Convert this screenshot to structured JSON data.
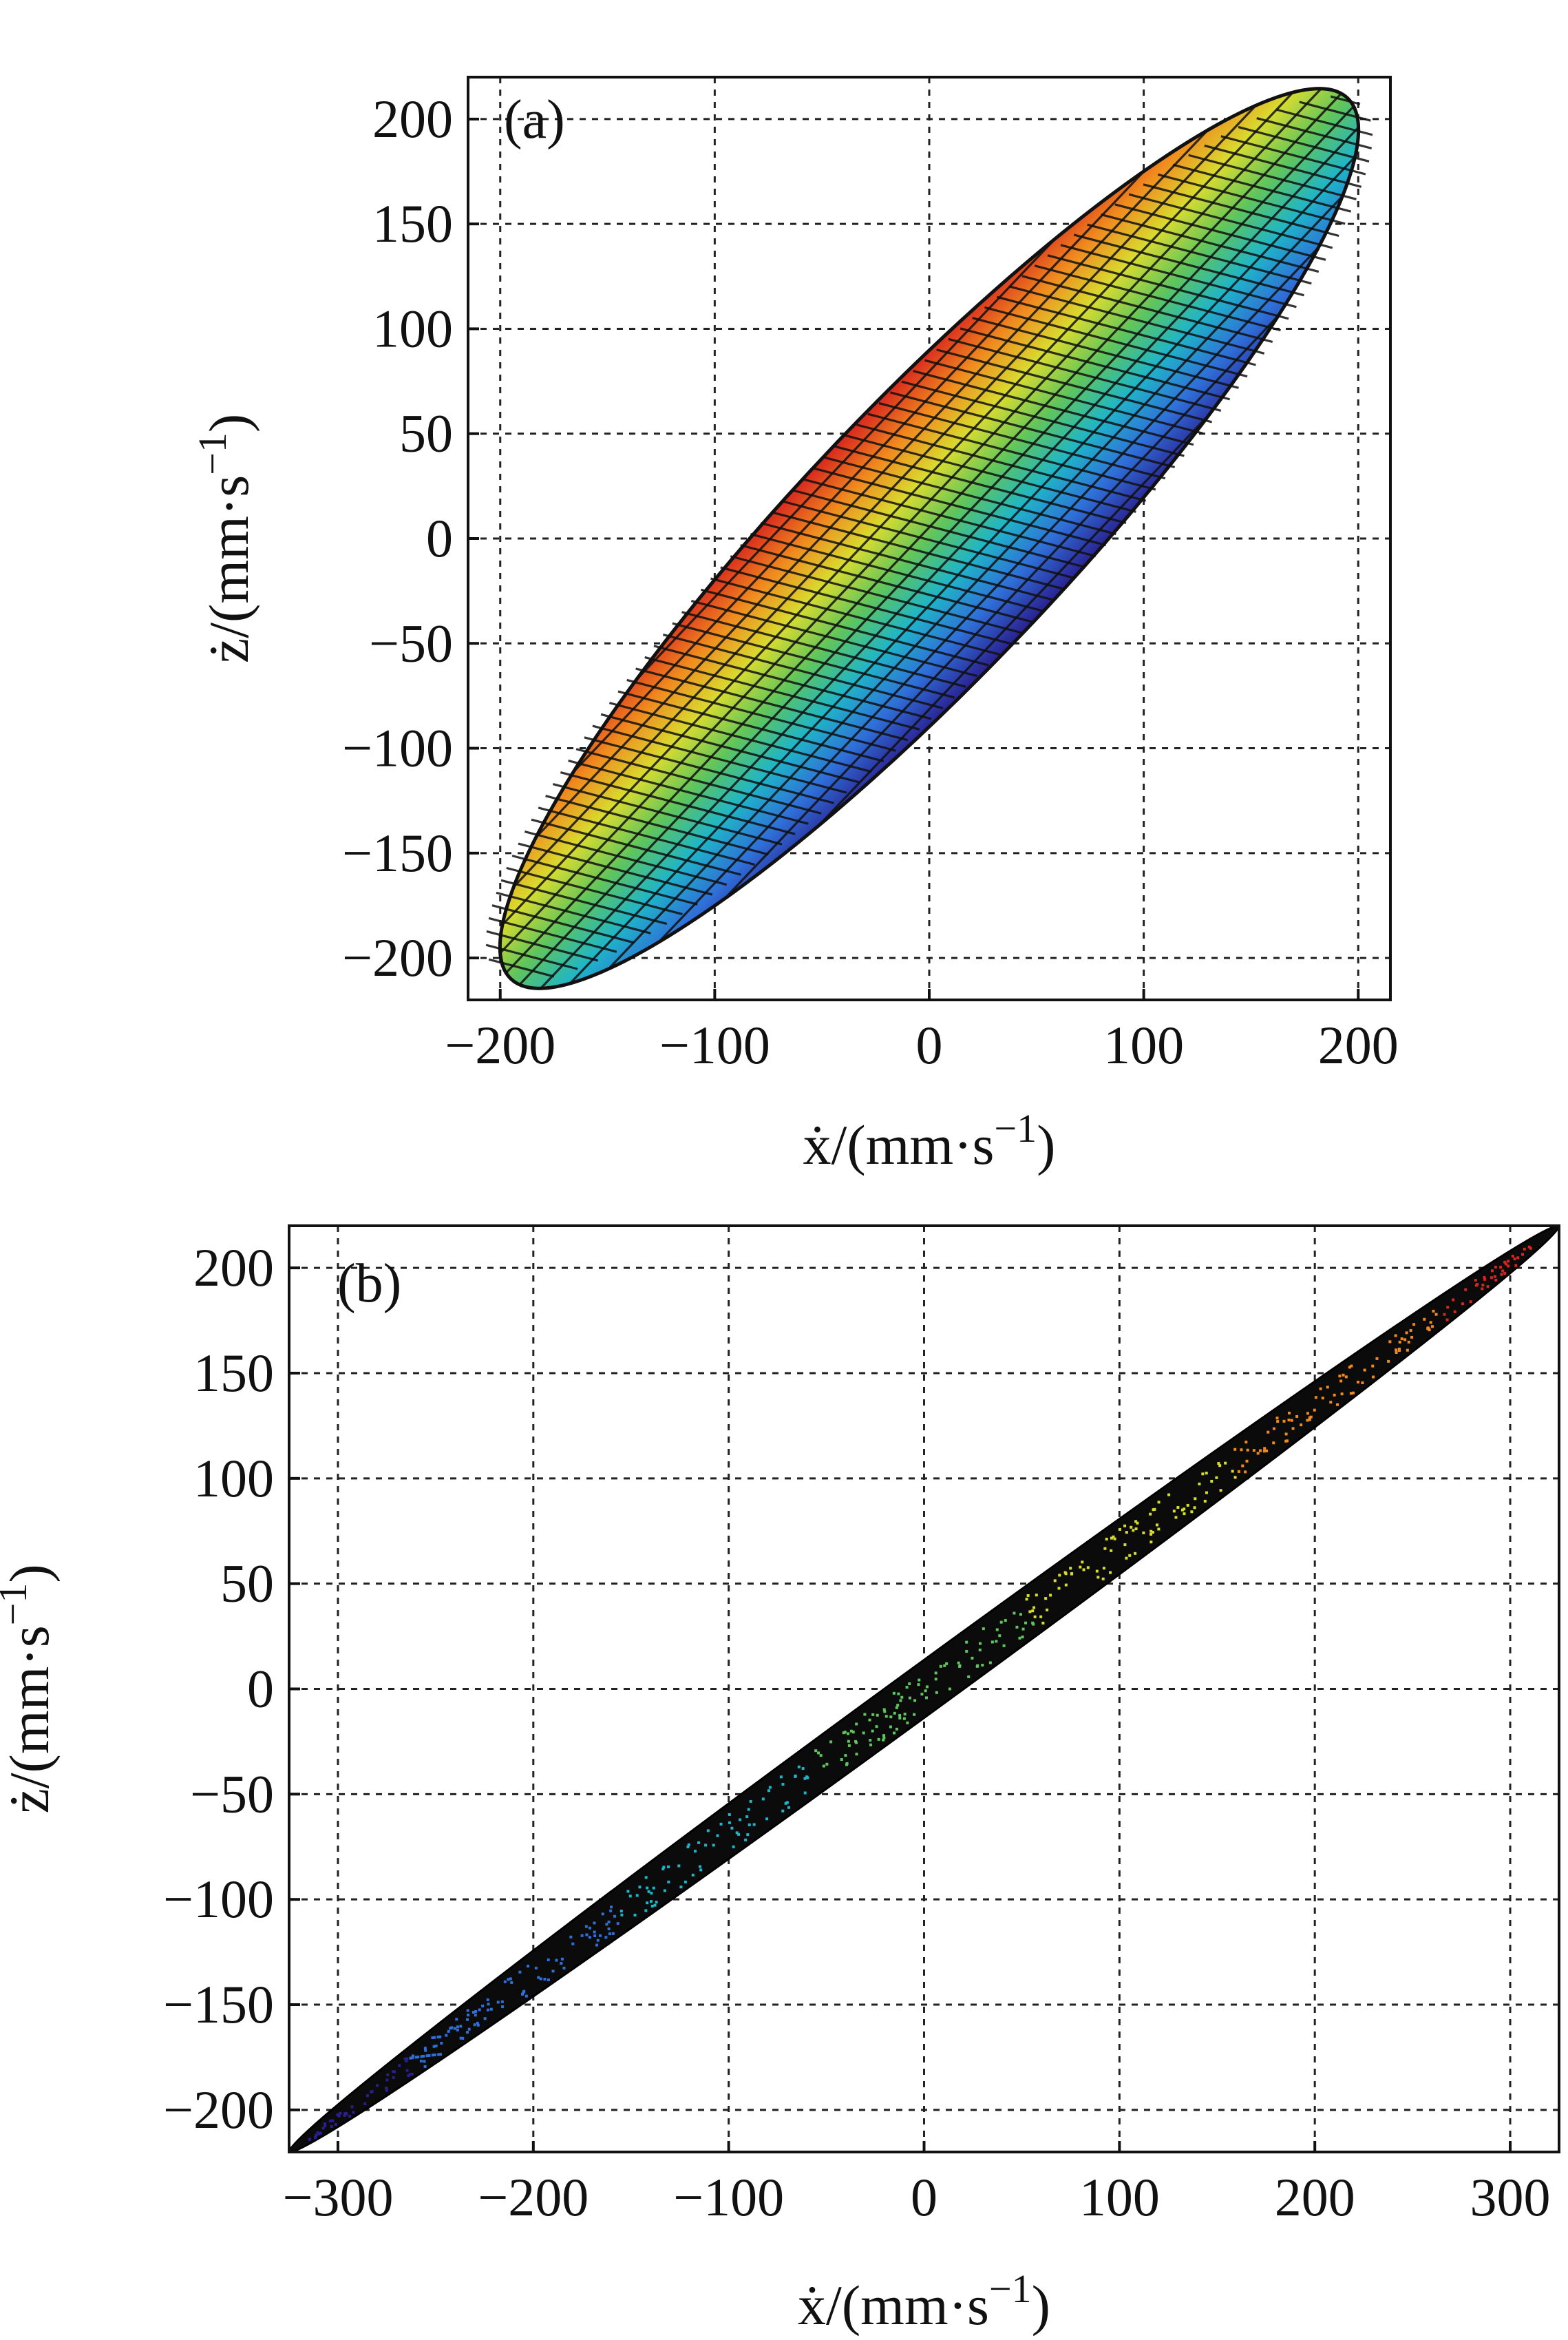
{
  "chart_data": [
    {
      "type": "scatter",
      "panel_label": "(a)",
      "xlabel": "ẋ/(mm·s−1)",
      "ylabel": "ż/(mm·s−1)",
      "xlim": [
        -215,
        215
      ],
      "ylim": [
        -220,
        220
      ],
      "x_ticks": [
        -200,
        -100,
        0,
        100,
        200
      ],
      "y_ticks": [
        -200,
        -150,
        -100,
        -50,
        0,
        50,
        100,
        150,
        200
      ],
      "grid": true,
      "legend": "none",
      "colormap": "jet",
      "colormap_stops": [
        "#2a1f8f",
        "#2f6fd8",
        "#1fb5c8",
        "#5fc55c",
        "#d8dc2f",
        "#f08a1e",
        "#d8261e"
      ],
      "description_data": {
        "shape": "filled ellipse",
        "center": [
          0,
          0
        ],
        "major_axis_endpoints": [
          [
            -195,
            -210
          ],
          [
            195,
            210
          ]
        ],
        "minor_half_width": 62,
        "color_by": "ż"
      }
    },
    {
      "type": "scatter",
      "panel_label": "(b)",
      "xlabel": "ẋ/(mm·s−1)",
      "ylabel": "ż/(mm·s−1)",
      "xlim": [
        -325,
        325
      ],
      "ylim": [
        -220,
        220
      ],
      "x_ticks": [
        -300,
        -200,
        -100,
        0,
        100,
        200,
        300
      ],
      "y_ticks": [
        -200,
        -150,
        -100,
        -50,
        0,
        50,
        100,
        150,
        200
      ],
      "grid": true,
      "legend": "none",
      "colormap": "jet",
      "colormap_stops": [
        "#2a1f8f",
        "#2f6fd8",
        "#1fb5c8",
        "#5fc55c",
        "#d8dc2f",
        "#f08a1e",
        "#d8261e"
      ],
      "description_data": {
        "shape": "thin filled ellipse, black dense points",
        "center": [
          0,
          0
        ],
        "major_axis_endpoints": [
          [
            -325,
            -220
          ],
          [
            325,
            220
          ]
        ],
        "minor_half_width": 12,
        "color_by": "ż"
      }
    }
  ]
}
